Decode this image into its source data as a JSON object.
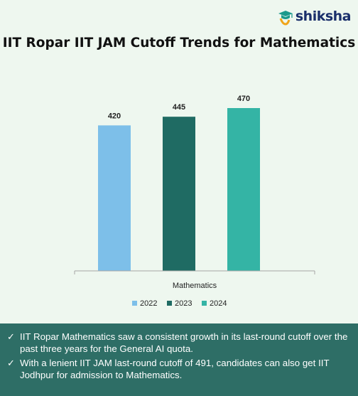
{
  "brand": {
    "logo_text": "shiksha",
    "logo_icon": "graduation-cap-icon"
  },
  "chart_data": {
    "type": "bar",
    "title": "IIT Ropar IIT JAM Cutoff Trends for Mathematics",
    "categories": [
      "Mathematics"
    ],
    "series": [
      {
        "name": "2022",
        "values": [
          420
        ],
        "color": "#7dbfe9"
      },
      {
        "name": "2023",
        "values": [
          445
        ],
        "color": "#1f6b63"
      },
      {
        "name": "2024",
        "values": [
          470
        ],
        "color": "#34b4a5"
      }
    ],
    "xlabel": "",
    "ylabel": "",
    "ylim": [
      0,
      500
    ],
    "grid": false,
    "legend": "bottom-center",
    "data_labels": true
  },
  "notes": [
    "IIT Ropar Mathematics saw a consistent growth in its last-round cutoff over the past three years for the General AI quota.",
    "With a lenient IIT JAM last-round cutoff of 491, candidates can also get IIT Jodhpur for admission to Mathematics."
  ],
  "note_icon": "check-icon",
  "colors": {
    "background": "#eef7ef",
    "notes_background": "#2e6e66",
    "brand": "#1a2f6b"
  }
}
